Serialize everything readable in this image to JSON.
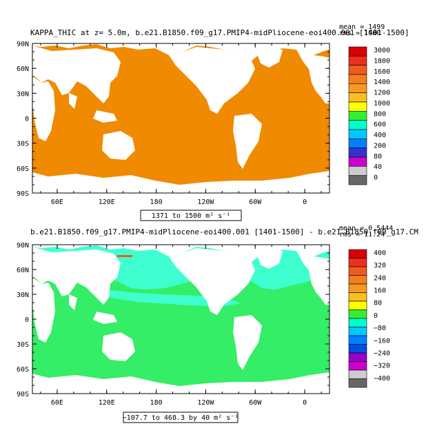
{
  "chart_data": [
    {
      "type": "heatmap",
      "title": "KAPPA_THIC at z=   5.0m, b.e21.B1850.f09_g17.PMIP4-midPliocene-eoi400.001 [1401-1500]",
      "stat_mean": "mean = 1499",
      "stat_rms": "rms = 1500",
      "range_label": "1371 to 1500 m² s⁻¹",
      "ylabels": [
        "90N",
        "60N",
        "30N",
        "0",
        "30S",
        "60S",
        "90S"
      ],
      "yvalues": [
        90,
        60,
        30,
        0,
        -30,
        -60,
        -90
      ],
      "xlabels": [
        "60E",
        "120E",
        "180",
        "120W",
        "60W",
        "0"
      ],
      "xvalues": [
        60,
        120,
        180,
        240,
        300,
        360
      ],
      "xlim": [
        30,
        390
      ],
      "ylim": [
        -90,
        90
      ],
      "colorbar_labels": [
        "3000",
        "1800",
        "1600",
        "1400",
        "1200",
        "1000",
        "800",
        "600",
        "400",
        "200",
        "80",
        "40",
        "0"
      ],
      "colorbar_colors": [
        "#d80000",
        "#ec3020",
        "#f05a20",
        "#f37d1f",
        "#f59a20",
        "#f7c020",
        "#ffff00",
        "#33ee33",
        "#00ffcc",
        "#00c8ff",
        "#0080ff",
        "#3333cc",
        "#cc00cc",
        "#cccccc",
        "#666666"
      ],
      "ocean_color": "#f08a00"
    },
    {
      "type": "heatmap",
      "title": "b.e21.B1850.f09_g17.PMIP4-midPliocene-eoi400.001 [1401-1500] - b.e21.B1850.f09_g17.CM",
      "stat_mean": "mean = 0.5444",
      "stat_rms": "rms = 11.24",
      "range_label": "−107.7 to 468.3 by 40 m² s⁻¹",
      "ylabels": [
        "90N",
        "60N",
        "30N",
        "0",
        "30S",
        "60S",
        "90S"
      ],
      "yvalues": [
        90,
        60,
        30,
        0,
        -30,
        -60,
        -90
      ],
      "xlabels": [
        "60E",
        "120E",
        "180",
        "120W",
        "60W",
        "0"
      ],
      "xvalues": [
        60,
        120,
        180,
        240,
        300,
        360
      ],
      "xlim": [
        30,
        390
      ],
      "ylim": [
        -90,
        90
      ],
      "colorbar_labels": [
        "400",
        "320",
        "240",
        "160",
        "80",
        "0",
        "−80",
        "−160",
        "−240",
        "−320",
        "−400"
      ],
      "colorbar_colors": [
        "#d80000",
        "#ec3020",
        "#f05a20",
        "#f37d1f",
        "#f59a20",
        "#f7c020",
        "#ffff00",
        "#33ee33",
        "#00ffcc",
        "#00c8ff",
        "#0080ff",
        "#0050e0",
        "#9900cc",
        "#cc00cc",
        "#cccccc",
        "#666666"
      ],
      "ocean_color": "#33ee66",
      "ocean_color_alt": "#3fffd0"
    }
  ]
}
